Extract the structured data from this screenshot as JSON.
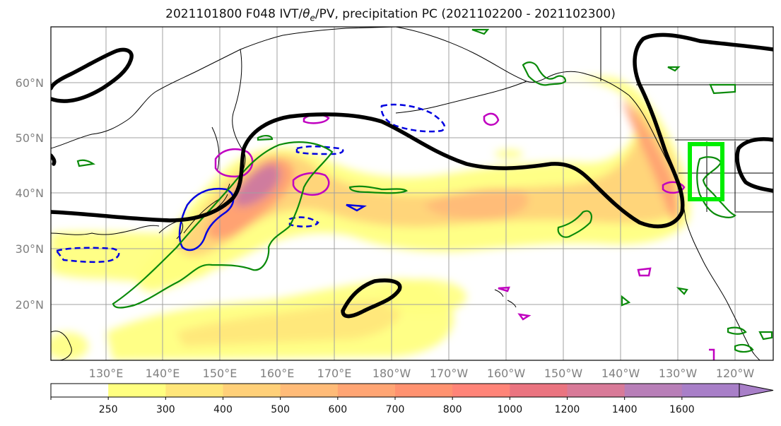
{
  "title": {
    "prefix": "2021101800 F048 IVT/",
    "theta": "θ",
    "theta_sub": "e",
    "suffix": "/PV, precipitation PC (2021102200 - 2021102300)"
  },
  "map": {
    "lat_labels": [
      "60°N",
      "50°N",
      "40°N",
      "30°N",
      "20°N"
    ],
    "lon_labels": [
      "130°E",
      "140°E",
      "150°E",
      "160°E",
      "170°E",
      "180°W",
      "170°W",
      "160°W",
      "150°W",
      "140°W",
      "130°W",
      "120°W"
    ],
    "axis_label_color": "#808080",
    "ivt_shading_colors": [
      "#ffff80",
      "#ffe67a",
      "#ffd079",
      "#ffbb78",
      "#ff9f72",
      "#fb8a70",
      "#ea7480",
      "#cc7aa0",
      "#a87fc8"
    ],
    "theta_e_contour_color": "#000000",
    "pv_contour_color": "#0a8a0a",
    "blue_contour_color": "#0000e0",
    "magenta_contour_color": "#c000c0",
    "target_box_color": "#00ee00"
  },
  "colorbar": {
    "ticks": [
      "250",
      "300",
      "400",
      "500",
      "600",
      "700",
      "800",
      "1000",
      "1200",
      "1400",
      "1600"
    ],
    "colors": [
      "#ffffff",
      "#ffff80",
      "#ffe67a",
      "#ffd079",
      "#ffbb78",
      "#ffa574",
      "#ff9270",
      "#ff8478",
      "#ea7480",
      "#d87a98",
      "#b87fb8",
      "#a87fc8"
    ]
  }
}
